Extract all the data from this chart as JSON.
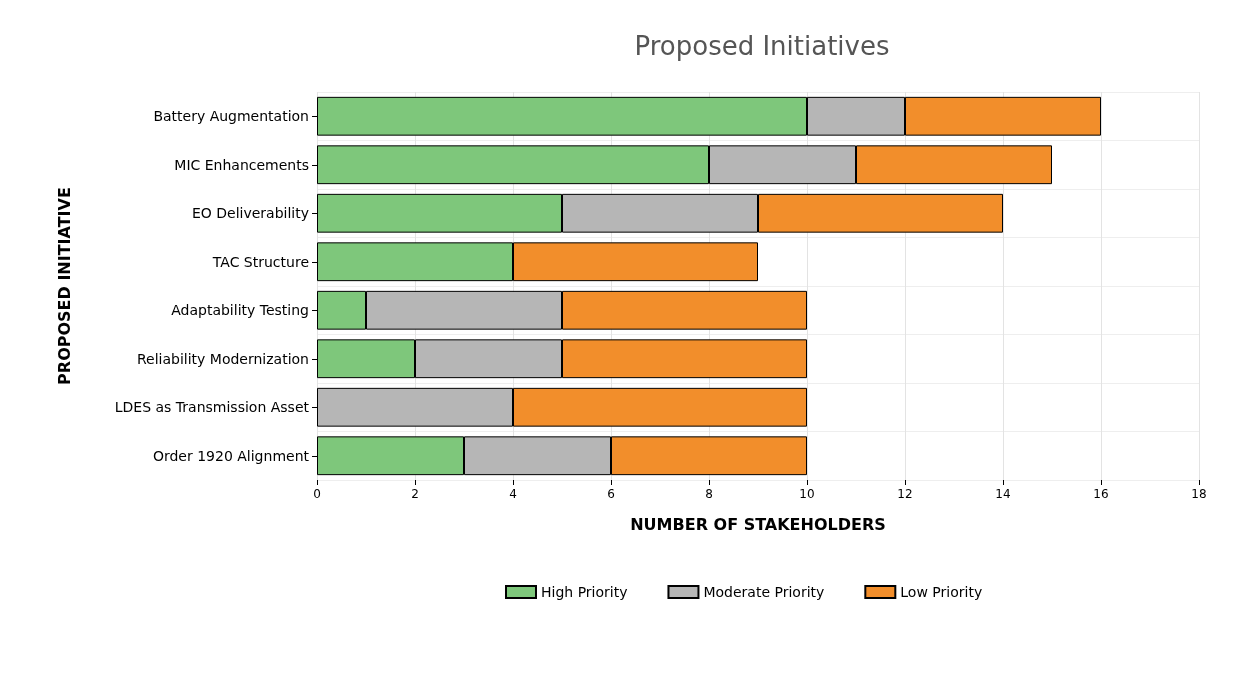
{
  "chart_data": {
    "type": "bar",
    "title": "Proposed Initiatives",
    "xlabel": "NUMBER OF STAKEHOLDERS",
    "ylabel": "PROPOSED INITIATIVE",
    "orientation": "horizontal",
    "stacked": true,
    "categories": [
      "Battery Augmentation",
      "MIC Enhancements",
      "EO Deliverability",
      "TAC Structure",
      "Adaptability Testing",
      "Reliability Modernization",
      "LDES as Transmission Asset",
      "Order 1920 Alignment"
    ],
    "series": [
      {
        "name": "High Priority",
        "color": "#7ec77b",
        "values": [
          10,
          8,
          5,
          4,
          1,
          2,
          0,
          3
        ]
      },
      {
        "name": "Moderate Priority",
        "color": "#b6b6b6",
        "values": [
          2,
          3,
          4,
          0,
          4,
          3,
          4,
          3
        ]
      },
      {
        "name": "Low Priority",
        "color": "#f28e2b",
        "values": [
          4,
          4,
          5,
          5,
          5,
          5,
          6,
          4
        ]
      }
    ],
    "xlim": [
      0,
      18
    ],
    "xticks": [
      0,
      2,
      4,
      6,
      8,
      10,
      12,
      14,
      16,
      18
    ],
    "grid": true,
    "legend": "bottom"
  }
}
